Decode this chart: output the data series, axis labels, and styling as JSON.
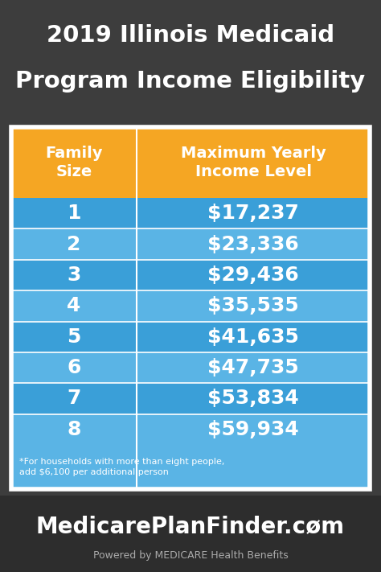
{
  "title_line1": "2019 Illinois Medicaid",
  "title_line2": "Program Income Eligibility",
  "title_bg": "#3d3d3d",
  "title_color": "#ffffff",
  "header_col1": "Family\nSize",
  "header_col2": "Maximum Yearly\nIncome Level",
  "header_bg": "#f5a623",
  "header_color": "#ffffff",
  "row_colors": [
    "#3a9fd8",
    "#5ab4e5"
  ],
  "rows": [
    [
      "1",
      "$17,237"
    ],
    [
      "2",
      "$23,336"
    ],
    [
      "3",
      "$29,436"
    ],
    [
      "4",
      "$35,535"
    ],
    [
      "5",
      "$41,635"
    ],
    [
      "6",
      "$47,735"
    ],
    [
      "7",
      "$53,834"
    ],
    [
      "8",
      "$59,934"
    ]
  ],
  "footnote_line1": "*For households with more than eight people,",
  "footnote_line2": "add $6,100 per additional person",
  "footnote_bg": "#5ab4e5",
  "footnote_color": "#ffffff",
  "footer_bg": "#2d2d2d",
  "footer_main": "MedicarePlanFinder.c",
  "footer_o": "o",
  "footer_m": "m",
  "footer_sub": "Powered by ",
  "footer_sub_bold": "MEDICARE",
  "footer_sub_end": " Health Benefits",
  "footer_color": "#ffffff",
  "footer_sub_color": "#aaaaaa",
  "row_text_color": "#ffffff",
  "table_bg": "#ffffff",
  "col_split_ratio": 0.35
}
